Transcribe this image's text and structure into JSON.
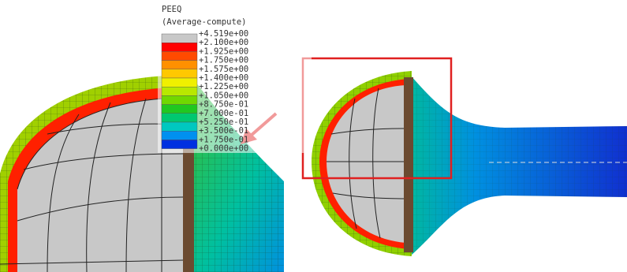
{
  "legend": {
    "title": "PEEQ",
    "subtitle": "(Average-compute)",
    "labels": [
      "+4.519e+00",
      "+2.100e+00",
      "+1.925e+00",
      "+1.750e+00",
      "+1.575e+00",
      "+1.400e+00",
      "+1.225e+00",
      "+1.050e+00",
      "+8.750e-01",
      "+7.000e-01",
      "+5.250e-01",
      "+3.500e-01",
      "+1.750e-01",
      "+0.000e+00"
    ],
    "colors": [
      "#c8c8c8",
      "#ff0000",
      "#ff4a00",
      "#ff9000",
      "#ffc800",
      "#f0f000",
      "#b8e800",
      "#70d800",
      "#20c820",
      "#00c870",
      "#00c8c0",
      "#0090f0",
      "#0030e0"
    ]
  }
}
